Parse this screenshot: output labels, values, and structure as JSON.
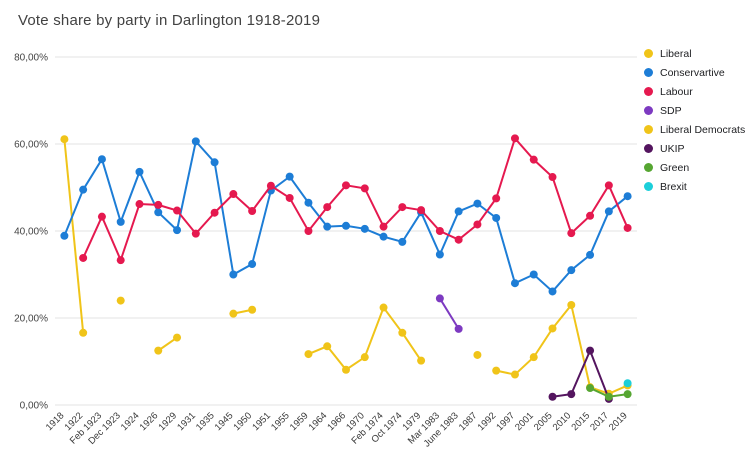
{
  "chart_data": {
    "type": "line",
    "title": "Vote share by party in Darlington 1918-2019",
    "xlabel": "",
    "ylabel": "",
    "ylim": [
      0,
      80
    ],
    "grid": "horizontal",
    "legend_position": "right",
    "y_ticks": [
      {
        "value": 0,
        "label": "0,00%"
      },
      {
        "value": 20,
        "label": "20,00%"
      },
      {
        "value": 40,
        "label": "40,00%"
      },
      {
        "value": 60,
        "label": "60,00%"
      },
      {
        "value": 80,
        "label": "80,00%"
      }
    ],
    "categories": [
      "1918",
      "1922",
      "Feb 1923",
      "Dec 1923",
      "1924",
      "1926",
      "1929",
      "1931",
      "1935",
      "1945",
      "1950",
      "1951",
      "1955",
      "1959",
      "1964",
      "1966",
      "1970",
      "Feb 1974",
      "Oct 1974",
      "1979",
      "Mar 1983",
      "June 1983",
      "1987",
      "1992",
      "1997",
      "2001",
      "2005",
      "2010",
      "2015",
      "2017",
      "2019"
    ],
    "series": [
      {
        "name": "Liberal",
        "color": "#f0c419",
        "values": [
          61.1,
          16.6,
          null,
          24,
          null,
          12.5,
          15.5,
          null,
          null,
          21,
          21.9,
          null,
          null,
          11.7,
          13.5,
          8.1,
          11,
          22.4,
          16.6,
          10.2,
          null,
          null,
          11.5,
          null,
          null,
          null,
          null,
          null,
          null,
          null,
          null
        ]
      },
      {
        "name": "Conservartive",
        "color": "#1d7dd6",
        "values": [
          38.9,
          49.5,
          56.5,
          42.1,
          53.6,
          44.3,
          40.2,
          60.6,
          55.8,
          30,
          32.4,
          49.3,
          52.5,
          46.5,
          41,
          41.2,
          40.5,
          38.7,
          37.5,
          44.3,
          34.6,
          44.5,
          46.3,
          43,
          28,
          30,
          26.1,
          31,
          34.5,
          44.5,
          48
        ]
      },
      {
        "name": "Labour",
        "color": "#e5194f",
        "values": [
          null,
          33.8,
          43.3,
          33.3,
          46.2,
          46,
          44.7,
          39.4,
          44.2,
          48.5,
          44.6,
          50.4,
          47.6,
          40,
          45.5,
          50.5,
          49.8,
          41,
          45.5,
          44.8,
          40,
          38,
          41.5,
          47.5,
          61.3,
          56.4,
          52.4,
          39.5,
          43.5,
          50.5,
          40.7
        ]
      },
      {
        "name": "SDP",
        "color": "#7d3ac1",
        "values": [
          null,
          null,
          null,
          null,
          null,
          null,
          null,
          null,
          null,
          null,
          null,
          null,
          null,
          null,
          null,
          null,
          null,
          null,
          null,
          null,
          24.5,
          17.5,
          null,
          null,
          null,
          null,
          null,
          null,
          null,
          null,
          null
        ]
      },
      {
        "name": "Liberal Democrats",
        "color": "#f0c419",
        "values": [
          null,
          null,
          null,
          null,
          null,
          null,
          null,
          null,
          null,
          null,
          null,
          null,
          null,
          null,
          null,
          null,
          null,
          null,
          null,
          null,
          null,
          null,
          null,
          7.9,
          7,
          11,
          17.6,
          23,
          4.1,
          2.6,
          4.5
        ]
      },
      {
        "name": "UKIP",
        "color": "#54155f",
        "values": [
          null,
          null,
          null,
          null,
          null,
          null,
          null,
          null,
          null,
          null,
          null,
          null,
          null,
          null,
          null,
          null,
          null,
          null,
          null,
          null,
          null,
          null,
          null,
          null,
          null,
          null,
          1.9,
          2.5,
          12.5,
          1.4,
          null
        ]
      },
      {
        "name": "Green",
        "color": "#56a632",
        "values": [
          null,
          null,
          null,
          null,
          null,
          null,
          null,
          null,
          null,
          null,
          null,
          null,
          null,
          null,
          null,
          null,
          null,
          null,
          null,
          null,
          null,
          null,
          null,
          null,
          null,
          null,
          null,
          null,
          3.9,
          1.9,
          2.5
        ]
      },
      {
        "name": "Brexit",
        "color": "#1ccfda",
        "values": [
          null,
          null,
          null,
          null,
          null,
          null,
          null,
          null,
          null,
          null,
          null,
          null,
          null,
          null,
          null,
          null,
          null,
          null,
          null,
          null,
          null,
          null,
          null,
          null,
          null,
          null,
          null,
          null,
          null,
          null,
          5
        ]
      }
    ]
  }
}
